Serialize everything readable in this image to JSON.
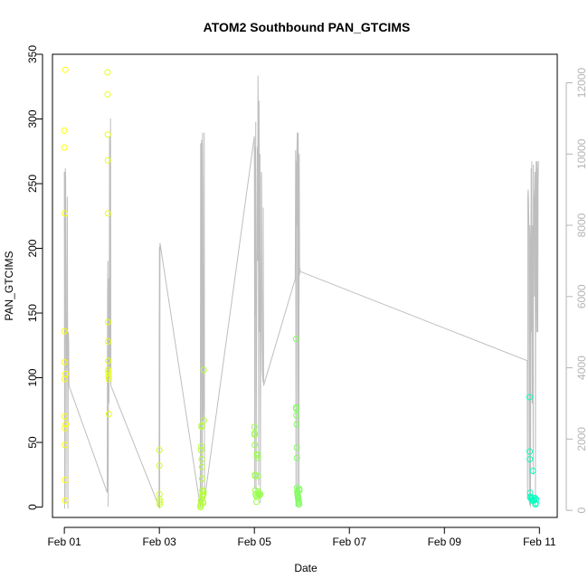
{
  "chart_data": {
    "type": "scatter",
    "title": "ATOM2 Southbound PAN_GTCIMS",
    "xlabel": "Date",
    "ylabel": "PAN_GTCIMS",
    "xlim": [
      "2020-01-31T18:00",
      "2020-02-11T09:00"
    ],
    "ylim": [
      -8,
      350
    ],
    "y2lim": [
      -200,
      12800
    ],
    "x_ticks": [
      {
        "t": "2020-02-01T00:00",
        "label": "Feb 01"
      },
      {
        "t": "2020-02-03T00:00",
        "label": "Feb 03"
      },
      {
        "t": "2020-02-05T00:00",
        "label": "Feb 05"
      },
      {
        "t": "2020-02-07T00:00",
        "label": "Feb 07"
      },
      {
        "t": "2020-02-09T00:00",
        "label": "Feb 09"
      },
      {
        "t": "2020-02-11T00:00",
        "label": "Feb 11"
      }
    ],
    "y_ticks": [
      0,
      50,
      100,
      150,
      200,
      250,
      300,
      350
    ],
    "y2_ticks": [
      0,
      2000,
      4000,
      6000,
      8000,
      10000,
      12000
    ],
    "grid": false,
    "legend": "none",
    "point_color_gradient": [
      "#ffff00",
      "#00ffbf"
    ],
    "line_color": "#bebebe",
    "series": [
      {
        "axis": "left",
        "render": "points",
        "x": [
          "2020-02-01T00:00",
          "2020-02-01T00:02",
          "2020-02-01T00:03",
          "2020-02-01T00:05",
          "2020-02-01T00:07",
          "2020-02-01T00:09",
          "2020-02-01T00:12",
          "2020-02-01T00:15",
          "2020-02-01T00:18",
          "2020-02-01T00:20",
          "2020-02-01T00:24",
          "2020-02-01T00:29",
          "2020-02-01T00:35",
          "2020-02-01T00:40",
          "2020-02-01T21:50",
          "2020-02-01T21:53",
          "2020-02-01T21:56",
          "2020-02-01T21:58",
          "2020-02-01T22:00",
          "2020-02-01T22:03",
          "2020-02-01T22:06",
          "2020-02-01T22:09",
          "2020-02-01T22:12",
          "2020-02-01T22:15",
          "2020-02-01T22:20",
          "2020-02-01T22:25",
          "2020-02-01T22:30",
          "2020-02-03T00:00",
          "2020-02-03T00:02",
          "2020-02-03T00:04",
          "2020-02-03T00:06",
          "2020-02-03T00:08",
          "2020-02-03T00:10",
          "2020-02-03T20:45",
          "2020-02-03T20:50",
          "2020-02-03T20:55",
          "2020-02-03T21:00",
          "2020-02-03T21:05",
          "2020-02-03T21:10",
          "2020-02-03T21:15",
          "2020-02-03T21:20",
          "2020-02-03T21:25",
          "2020-02-03T21:30",
          "2020-02-03T21:35",
          "2020-02-03T21:40",
          "2020-02-03T21:45",
          "2020-02-03T21:50",
          "2020-02-03T21:55",
          "2020-02-03T22:00",
          "2020-02-03T22:10",
          "2020-02-03T22:15",
          "2020-02-03T22:20",
          "2020-02-03T22:25",
          "2020-02-03T22:30",
          "2020-02-05T00:00",
          "2020-02-05T00:05",
          "2020-02-05T00:10",
          "2020-02-05T00:15",
          "2020-02-05T00:20",
          "2020-02-05T00:25",
          "2020-02-05T00:30",
          "2020-02-05T00:40",
          "2020-02-05T00:50",
          "2020-02-05T01:00",
          "2020-02-05T01:10",
          "2020-02-05T01:20",
          "2020-02-05T01:30",
          "2020-02-05T01:40",
          "2020-02-05T01:50",
          "2020-02-05T02:00",
          "2020-02-05T02:10",
          "2020-02-05T02:20",
          "2020-02-05T02:40",
          "2020-02-05T03:00",
          "2020-02-05T21:00",
          "2020-02-05T21:05",
          "2020-02-05T21:10",
          "2020-02-05T21:15",
          "2020-02-05T21:20",
          "2020-02-05T21:25",
          "2020-02-05T21:30",
          "2020-02-05T21:35",
          "2020-02-05T21:40",
          "2020-02-05T21:45",
          "2020-02-05T21:50",
          "2020-02-05T21:55",
          "2020-02-05T22:00",
          "2020-02-05T22:05",
          "2020-02-05T22:10",
          "2020-02-05T22:15",
          "2020-02-05T22:20",
          "2020-02-05T22:25",
          "2020-02-05T22:30",
          "2020-02-05T22:35",
          "2020-02-05T22:40",
          "2020-02-05T22:45",
          "2020-02-10T19:00",
          "2020-02-10T19:05",
          "2020-02-10T19:10",
          "2020-02-10T19:20",
          "2020-02-10T19:30",
          "2020-02-10T19:40",
          "2020-02-10T20:00",
          "2020-02-10T20:20",
          "2020-02-10T20:40",
          "2020-02-10T21:00",
          "2020-02-10T21:20",
          "2020-02-10T21:40",
          "2020-02-10T22:00",
          "2020-02-10T22:10",
          "2020-02-10T22:20"
        ],
        "y": [
          291,
          278,
          136,
          112,
          99,
          70,
          227,
          61,
          48,
          21,
          5,
          338,
          103,
          64,
          336,
          319,
          288,
          268,
          227,
          143,
          128,
          113,
          106,
          104,
          101,
          99,
          72,
          44,
          32,
          10,
          6,
          4,
          2,
          0,
          1,
          2,
          5,
          44,
          47,
          62,
          63,
          37,
          31,
          22,
          13,
          10,
          9,
          8,
          4,
          3,
          10,
          12,
          106,
          67,
          62,
          57,
          56,
          48,
          25,
          24,
          13,
          10,
          9,
          4,
          8,
          41,
          40,
          38,
          24,
          12,
          10,
          11,
          9,
          10,
          130,
          77,
          76,
          71,
          64,
          46,
          38,
          15,
          12,
          11,
          10,
          9,
          8,
          7,
          6,
          5,
          4,
          3,
          3,
          2,
          14,
          13,
          85,
          43,
          37,
          11,
          8,
          7,
          6,
          5,
          28,
          5,
          6,
          7,
          2,
          3,
          6
        ]
      },
      {
        "axis": "right",
        "render": "line",
        "x": [
          "2020-02-01T00:00",
          "2020-02-01T00:10",
          "2020-02-01T00:20",
          "2020-02-01T00:30",
          "2020-02-01T00:40",
          "2020-02-01T00:50",
          "2020-02-01T01:00",
          "2020-02-01T01:10",
          "2020-02-01T01:20",
          "2020-02-01T01:30",
          "2020-02-01T01:40",
          "2020-02-01T01:50",
          "2020-02-01T02:00",
          "2020-02-01T02:10",
          "2020-02-01T02:20",
          "2020-02-01T21:40",
          "2020-02-01T21:50",
          "2020-02-01T22:00",
          "2020-02-01T22:10",
          "2020-02-01T22:20",
          "2020-02-01T22:30",
          "2020-02-01T22:40",
          "2020-02-01T22:50",
          "2020-02-01T23:00",
          "2020-02-01T23:10",
          "2020-02-01T23:20",
          "2020-02-01T23:30",
          "2020-02-02T23:50",
          "2020-02-03T00:00",
          "2020-02-03T00:10",
          "2020-02-03T00:20",
          "2020-02-03T20:40",
          "2020-02-03T20:50",
          "2020-02-03T21:00",
          "2020-02-03T21:10",
          "2020-02-03T21:20",
          "2020-02-03T21:30",
          "2020-02-03T21:40",
          "2020-02-03T21:50",
          "2020-02-03T22:00",
          "2020-02-03T22:10",
          "2020-02-03T22:20",
          "2020-02-03T22:30",
          "2020-02-03T22:40",
          "2020-02-03T22:50",
          "2020-02-05T00:00",
          "2020-02-05T00:10",
          "2020-02-05T00:20",
          "2020-02-05T00:30",
          "2020-02-05T00:40",
          "2020-02-05T00:50",
          "2020-02-05T01:00",
          "2020-02-05T01:10",
          "2020-02-05T01:20",
          "2020-02-05T01:30",
          "2020-02-05T01:40",
          "2020-02-05T01:50",
          "2020-02-05T02:00",
          "2020-02-05T02:10",
          "2020-02-05T02:20",
          "2020-02-05T02:30",
          "2020-02-05T02:40",
          "2020-02-05T02:50",
          "2020-02-05T03:00",
          "2020-02-05T03:10",
          "2020-02-05T03:20",
          "2020-02-05T03:30",
          "2020-02-05T03:40",
          "2020-02-05T03:50",
          "2020-02-05T04:00",
          "2020-02-05T04:10",
          "2020-02-05T04:20",
          "2020-02-05T04:30",
          "2020-02-05T04:40",
          "2020-02-05T20:40",
          "2020-02-05T20:50",
          "2020-02-05T21:00",
          "2020-02-05T21:10",
          "2020-02-05T21:20",
          "2020-02-05T21:30",
          "2020-02-05T21:40",
          "2020-02-05T21:50",
          "2020-02-05T22:00",
          "2020-02-05T22:10",
          "2020-02-05T22:20",
          "2020-02-05T22:30",
          "2020-02-05T22:40",
          "2020-02-05T22:50",
          "2020-02-05T23:00",
          "2020-02-05T23:10",
          "2020-02-10T17:50",
          "2020-02-10T18:00",
          "2020-02-10T18:10",
          "2020-02-10T18:20",
          "2020-02-10T18:30",
          "2020-02-10T18:40",
          "2020-02-10T18:50",
          "2020-02-10T19:00",
          "2020-02-10T19:10",
          "2020-02-10T19:20",
          "2020-02-10T19:30",
          "2020-02-10T19:40",
          "2020-02-10T19:50",
          "2020-02-10T20:00",
          "2020-02-10T20:10",
          "2020-02-10T20:20",
          "2020-02-10T20:30",
          "2020-02-10T20:40",
          "2020-02-10T20:50",
          "2020-02-10T21:00",
          "2020-02-10T21:10",
          "2020-02-10T21:20",
          "2020-02-10T21:30",
          "2020-02-10T21:40",
          "2020-02-10T21:50",
          "2020-02-10T22:00",
          "2020-02-10T22:10",
          "2020-02-10T22:20",
          "2020-02-10T22:30",
          "2020-02-10T22:40",
          "2020-02-10T22:50",
          "2020-02-10T23:00",
          "2020-02-10T23:10",
          "2020-02-10T23:20",
          "2020-02-10T23:30"
        ],
        "y": [
          9500,
          50,
          9200,
          9600,
          9300,
          200,
          4500,
          4000,
          6700,
          8800,
          4200,
          50,
          5000,
          4800,
          3500,
          500,
          6000,
          7000,
          100,
          6500,
          3000,
          4000,
          10500,
          9000,
          4000,
          11000,
          3500,
          100,
          7400,
          50,
          7500,
          100,
          10300,
          200,
          5000,
          10400,
          9600,
          100,
          10600,
          9000,
          2500,
          3000,
          4000,
          10600,
          300,
          10500,
          600,
          10200,
          5500,
          10900,
          400,
          3000,
          6400,
          8200,
          10200,
          7000,
          12200,
          10400,
          700,
          11500,
          9000,
          5000,
          10000,
          200,
          3700,
          5000,
          9500,
          9400,
          6000,
          3900,
          3800,
          3600,
          8500,
          3500,
          6500,
          10100,
          100,
          9800,
          8000,
          10000,
          10600,
          200,
          7000,
          10600,
          6000,
          300,
          10000,
          6600,
          6800,
          6700,
          4200,
          300,
          8800,
          9000,
          8600,
          8000,
          2000,
          150,
          8000,
          7500,
          100,
          6000,
          9600,
          5000,
          9800,
          3000,
          8000,
          6500,
          1000,
          9700,
          9000,
          8800,
          6000,
          7000,
          9500,
          100,
          9000,
          9800,
          6000,
          5000,
          9800,
          9400,
          5000,
          9000,
          9800
        ]
      }
    ]
  }
}
